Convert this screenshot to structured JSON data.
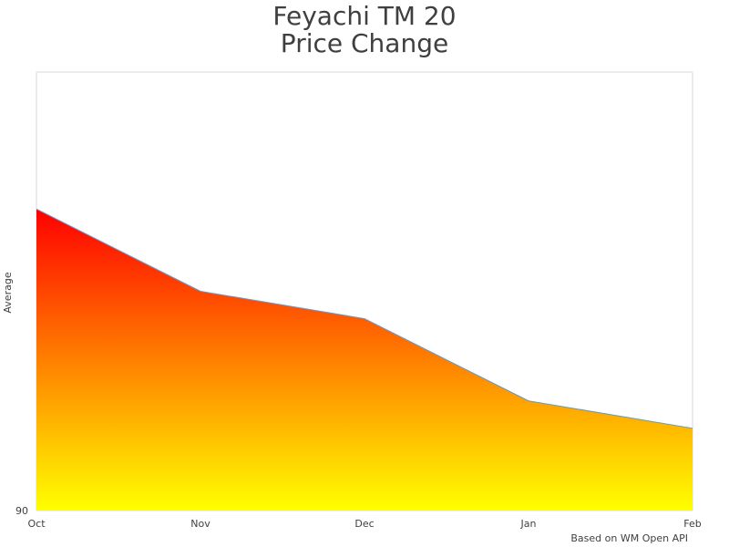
{
  "chart_data": {
    "type": "area",
    "title_lines": [
      "Feyachi TM 20",
      "Price Change"
    ],
    "ylabel": "Average",
    "xlabel": "",
    "categories": [
      "Oct",
      "Nov",
      "Dec",
      "Jan",
      "Feb"
    ],
    "series": [
      {
        "values": [
          101.0,
          98.0,
          97.0,
          94.0,
          93.0
        ]
      }
    ],
    "y_tick_labels": [
      "90"
    ],
    "ylim": [
      90,
      106
    ],
    "grid": false,
    "legend": "none",
    "fill_gradient": {
      "top": "#ff0000",
      "bottom": "#ffff00"
    },
    "line_color": "#5b9bd5",
    "frame_color": "#d9d9d9",
    "note": "Based on WM Open API"
  }
}
